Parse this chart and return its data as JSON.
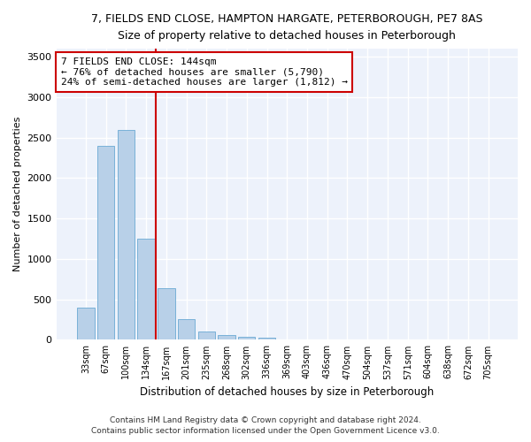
{
  "title_line1": "7, FIELDS END CLOSE, HAMPTON HARGATE, PETERBOROUGH, PE7 8AS",
  "title_line2": "Size of property relative to detached houses in Peterborough",
  "xlabel": "Distribution of detached houses by size in Peterborough",
  "ylabel": "Number of detached properties",
  "categories": [
    "33sqm",
    "67sqm",
    "100sqm",
    "134sqm",
    "167sqm",
    "201sqm",
    "235sqm",
    "268sqm",
    "302sqm",
    "336sqm",
    "369sqm",
    "403sqm",
    "436sqm",
    "470sqm",
    "504sqm",
    "537sqm",
    "571sqm",
    "604sqm",
    "638sqm",
    "672sqm",
    "705sqm"
  ],
  "values": [
    400,
    2400,
    2600,
    1250,
    640,
    260,
    100,
    55,
    40,
    30,
    0,
    0,
    0,
    0,
    0,
    0,
    0,
    0,
    0,
    0,
    0
  ],
  "bar_color": "#b8d0e8",
  "bar_edge_color": "#6aaad4",
  "annotation_text": "7 FIELDS END CLOSE: 144sqm\n← 76% of detached houses are smaller (5,790)\n24% of semi-detached houses are larger (1,812) →",
  "annotation_box_color": "#ffffff",
  "annotation_box_edge": "#cc0000",
  "vline_color": "#cc0000",
  "vline_x": 3.5,
  "ylim": [
    0,
    3600
  ],
  "yticks": [
    0,
    500,
    1000,
    1500,
    2000,
    2500,
    3000,
    3500
  ],
  "background_color": "#edf2fb",
  "grid_color": "#ffffff",
  "footer_line1": "Contains HM Land Registry data © Crown copyright and database right 2024.",
  "footer_line2": "Contains public sector information licensed under the Open Government Licence v3.0."
}
